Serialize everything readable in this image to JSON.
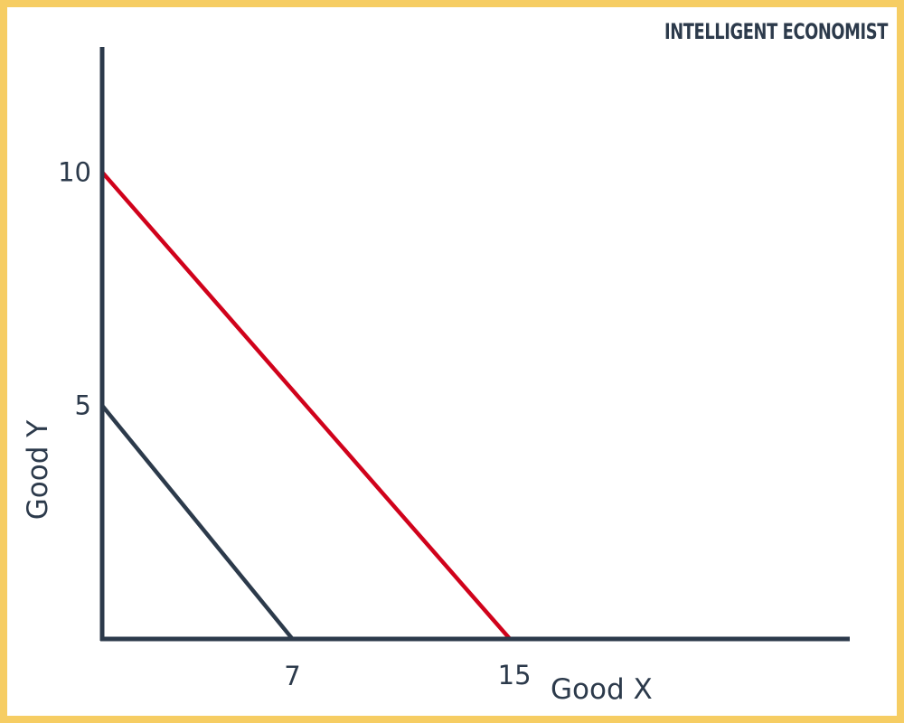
{
  "brand": {
    "name": "INTELLIGENT ECONOMIST"
  },
  "colors": {
    "frame": "#f6cd63",
    "axis": "#2c3a4b",
    "original_budget_line": "#2c3a4b",
    "new_budget_line": "#d0021b",
    "text": "#2c3a4b"
  },
  "chart_data": {
    "type": "line",
    "title": "",
    "xlabel": "Good X",
    "ylabel": "Good Y",
    "xlim": [
      0,
      27.5
    ],
    "ylim": [
      0,
      12.7
    ],
    "x_ticks": [
      7,
      15
    ],
    "y_ticks": [
      5,
      10
    ],
    "grid": false,
    "legend": "none",
    "series": [
      {
        "color": "#2c3a4b",
        "points": [
          [
            0,
            5
          ],
          [
            7,
            0
          ]
        ]
      },
      {
        "color": "#d0021b",
        "points": [
          [
            0,
            10
          ],
          [
            15,
            0
          ]
        ]
      }
    ]
  }
}
